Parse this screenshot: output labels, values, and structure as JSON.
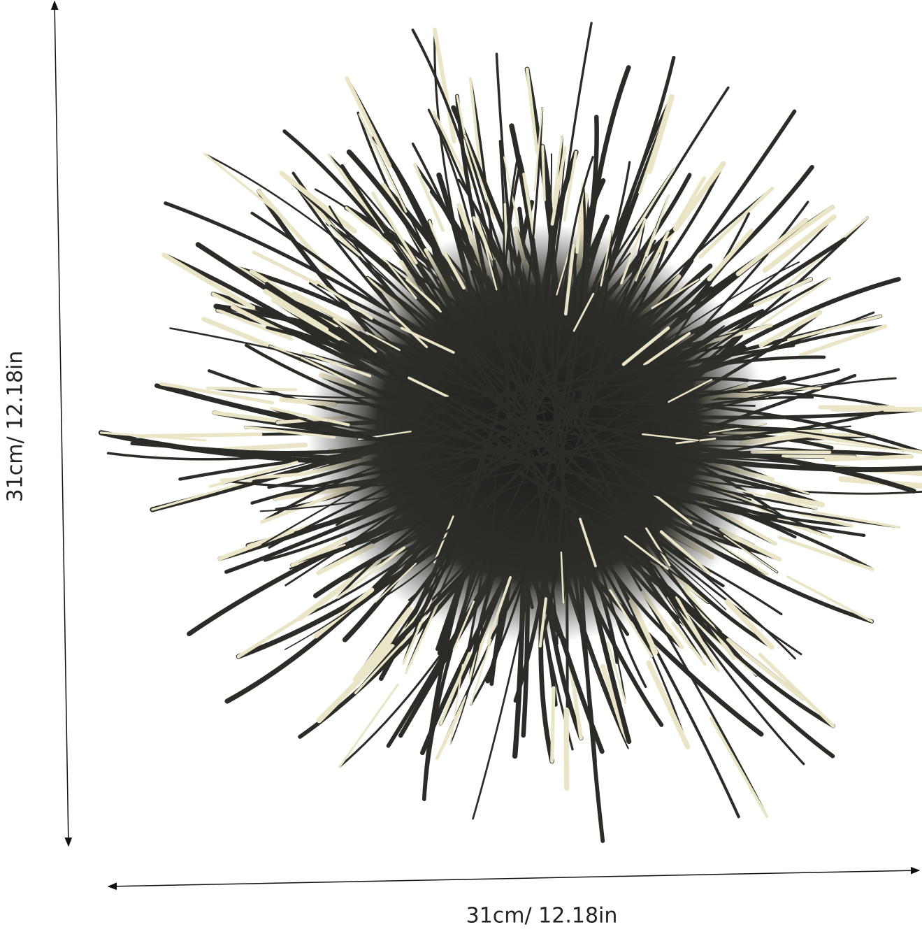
{
  "product": {
    "height_label": "31cm/ 12.18in",
    "width_label": "31cm/ 12.18in",
    "colors": {
      "dark": "#2b2b27",
      "tip": "#ebe5c8",
      "background": "#ffffff"
    }
  }
}
